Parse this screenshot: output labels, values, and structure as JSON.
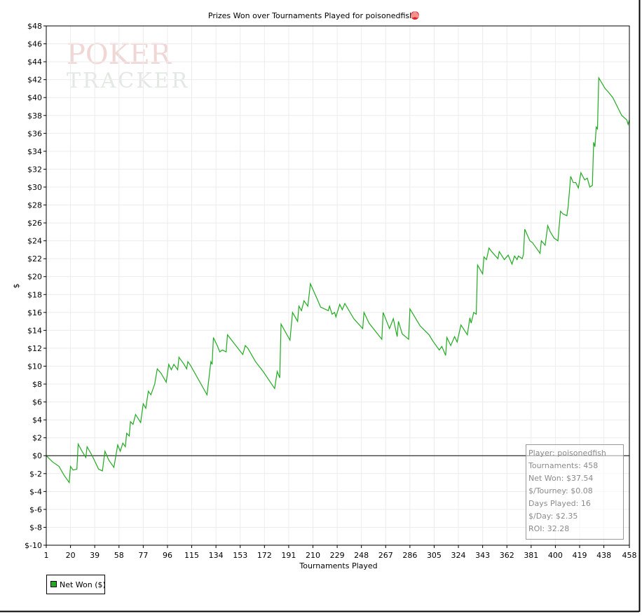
{
  "chart_data": {
    "type": "line",
    "title": "Prizes Won over Tournaments Played for poisonedfish",
    "watermark": [
      "POKER",
      "TRACKER"
    ],
    "x_label": "Tournaments Played",
    "y_label": "$",
    "xlim": [
      1,
      458
    ],
    "xticks": [
      1,
      20,
      39,
      58,
      77,
      96,
      115,
      134,
      153,
      172,
      191,
      210,
      229,
      248,
      267,
      286,
      305,
      324,
      343,
      362,
      381,
      400,
      419,
      438,
      458
    ],
    "ylim": [
      -10,
      48
    ],
    "yticks": [
      {
        "value": -10,
        "label": "$-10"
      },
      {
        "value": -8,
        "label": "$-8"
      },
      {
        "value": -6,
        "label": "$-6"
      },
      {
        "value": -4,
        "label": "$-4"
      },
      {
        "value": -2,
        "label": "$-2"
      },
      {
        "value": 0,
        "label": "$0"
      },
      {
        "value": 2,
        "label": "$2"
      },
      {
        "value": 4,
        "label": "$4"
      },
      {
        "value": 6,
        "label": "$6"
      },
      {
        "value": 8,
        "label": "$8"
      },
      {
        "value": 10,
        "label": "$10"
      },
      {
        "value": 12,
        "label": "$12"
      },
      {
        "value": 14,
        "label": "$14"
      },
      {
        "value": 16,
        "label": "$16"
      },
      {
        "value": 18,
        "label": "$18"
      },
      {
        "value": 20,
        "label": "$20"
      },
      {
        "value": 22,
        "label": "$22"
      },
      {
        "value": 24,
        "label": "$24"
      },
      {
        "value": 26,
        "label": "$26"
      },
      {
        "value": 28,
        "label": "$28"
      },
      {
        "value": 30,
        "label": "$30"
      },
      {
        "value": 32,
        "label": "$32"
      },
      {
        "value": 34,
        "label": "$34"
      },
      {
        "value": 36,
        "label": "$36"
      },
      {
        "value": 38,
        "label": "$38"
      },
      {
        "value": 40,
        "label": "$40"
      },
      {
        "value": 42,
        "label": "$42"
      },
      {
        "value": 44,
        "label": "$44"
      },
      {
        "value": 46,
        "label": "$46"
      },
      {
        "value": 48,
        "label": "$48"
      }
    ],
    "grid": true,
    "zero_line": true,
    "x": [
      1,
      6,
      11,
      15,
      19,
      20,
      22,
      25,
      26,
      29,
      32,
      33,
      37,
      42,
      45,
      47,
      50,
      54,
      57,
      59,
      61,
      63,
      64,
      66,
      67,
      69,
      71,
      75,
      77,
      79,
      81,
      83,
      86,
      88,
      91,
      95,
      97,
      99,
      101,
      104,
      105,
      109,
      111,
      112,
      114,
      127,
      130,
      131,
      132,
      135,
      137,
      139,
      142,
      143,
      155,
      157,
      159,
      165,
      171,
      180,
      182,
      184,
      185,
      192,
      194,
      198,
      199,
      201,
      203,
      206,
      208,
      213,
      216,
      222,
      223,
      225,
      227,
      228,
      231,
      233,
      235,
      242,
      249,
      250,
      254,
      264,
      265,
      270,
      273,
      276,
      277,
      280,
      285,
      286,
      294,
      301,
      304,
      309,
      311,
      314,
      315,
      318,
      321,
      323,
      326,
      331,
      333,
      334,
      336,
      338,
      339,
      343,
      344,
      346,
      348,
      350,
      355,
      356,
      360,
      363,
      366,
      368,
      370,
      371,
      374,
      375,
      376,
      380,
      382,
      388,
      389,
      392,
      394,
      396,
      399,
      402,
      404,
      406,
      409,
      410,
      412,
      414,
      416,
      418,
      420,
      423,
      425,
      427,
      429,
      430,
      431,
      432,
      433,
      434,
      439,
      441,
      445,
      452,
      456,
      457,
      458
    ],
    "series": [
      {
        "name": "Net Won ($)",
        "color": "#22aa22",
        "values": [
          0,
          -0.7,
          -1.2,
          -2.2,
          -3,
          -1.2,
          -1.6,
          -1.5,
          1.3,
          0.5,
          -0.2,
          1,
          0,
          -1.5,
          -1.7,
          0.5,
          -0.5,
          -1.3,
          1.2,
          0.5,
          1.4,
          1,
          2.5,
          2.2,
          3.8,
          3.5,
          4.6,
          3.7,
          5.8,
          5.3,
          7.2,
          6.8,
          8,
          9.7,
          9.2,
          8.2,
          10.2,
          9.6,
          10.2,
          9.6,
          11,
          10.2,
          9.7,
          10.5,
          10.1,
          6.8,
          10.5,
          10.2,
          13.2,
          12.3,
          11.6,
          11.8,
          11.6,
          13.5,
          11.3,
          12.3,
          12,
          10.5,
          9.4,
          7.5,
          9.4,
          8.7,
          14.7,
          12.9,
          16,
          15,
          16.7,
          16.2,
          17.3,
          16.7,
          19.2,
          17.6,
          16.6,
          16.2,
          16.7,
          15.8,
          16,
          15.5,
          16.9,
          16.3,
          17,
          15.3,
          14.2,
          16,
          14.8,
          13,
          16,
          14.2,
          15.3,
          13.3,
          15,
          13.6,
          13,
          16.4,
          14.5,
          13.5,
          12.8,
          11.8,
          12.2,
          11.2,
          13.2,
          12.3,
          13.3,
          12.7,
          14.6,
          13.5,
          15.4,
          14.8,
          16,
          15.8,
          21.3,
          20.3,
          22.2,
          21.9,
          23.2,
          22.8,
          22,
          22.8,
          21.9,
          22.4,
          21.4,
          22.3,
          21.9,
          22.3,
          22,
          22.5,
          25.3,
          24,
          23.8,
          22.6,
          24,
          23.5,
          25.7,
          25,
          24.3,
          24,
          27.3,
          27,
          26.8,
          27.8,
          31.2,
          30.5,
          30.5,
          29.9,
          31.6,
          30.8,
          31,
          30,
          30.2,
          35,
          34.5,
          36.7,
          36.5,
          42.2,
          41,
          40.7,
          40,
          38,
          37.5,
          37,
          37.5
        ]
      }
    ],
    "legend": "bottom-left",
    "info_box": [
      "Player: poisonedfish",
      "Tournaments: 458",
      "Net Won: $37.54",
      "$/Tourney: $0.08",
      "Days Played: 16",
      "$/Day: $2.35",
      "ROI: 32.28"
    ]
  }
}
